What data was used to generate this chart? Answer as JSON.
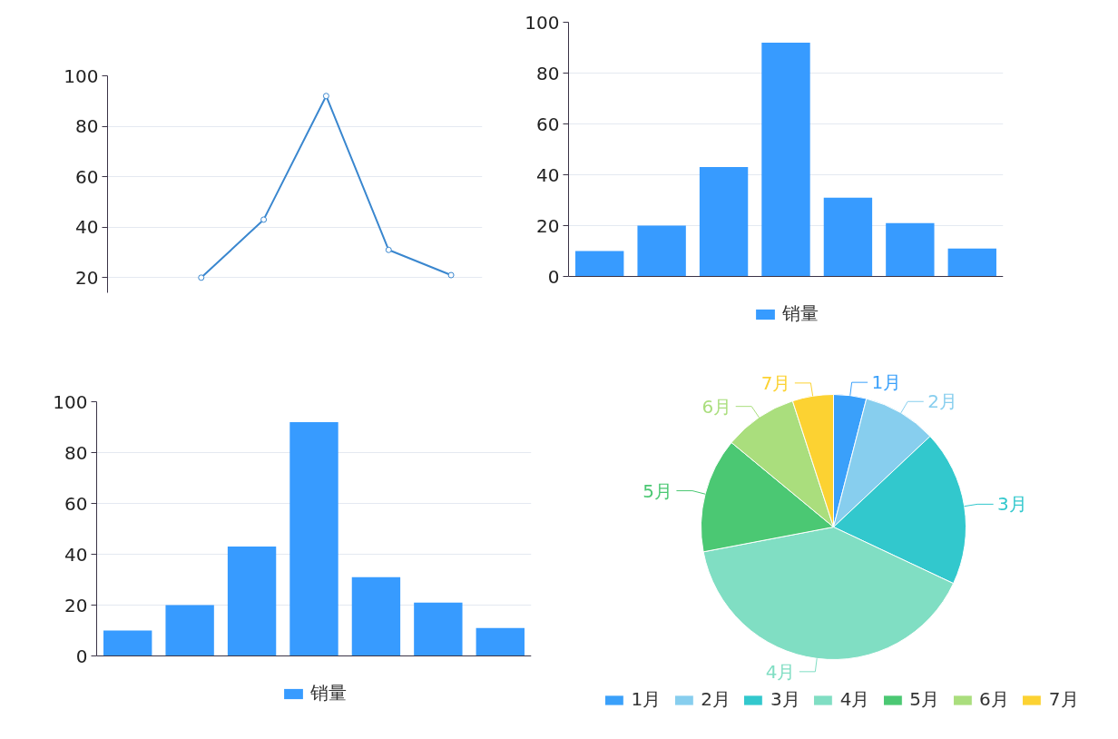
{
  "chart_data": [
    {
      "type": "line",
      "categories": [
        null,
        null,
        null,
        null,
        null,
        null
      ],
      "values": [
        null,
        20,
        43,
        92,
        31,
        21
      ],
      "color": "#3a87cf",
      "marker": "circle",
      "ylim": [
        14,
        100
      ],
      "yticks": [
        20,
        40,
        60,
        80,
        100
      ],
      "grid": "y",
      "tick_labels": "y"
    },
    {
      "type": "bar",
      "categories": [
        null,
        null,
        null,
        null,
        null,
        null,
        null
      ],
      "series": [
        {
          "name": "销量",
          "color": "#379bff",
          "values": [
            10,
            20,
            43,
            92,
            31,
            21,
            11
          ]
        }
      ],
      "ylim": [
        0,
        100
      ],
      "yticks": [
        0,
        20,
        40,
        60,
        80,
        100
      ],
      "grid": "y",
      "legend": "bottom",
      "tick_labels": "y"
    },
    {
      "type": "bar",
      "categories": [
        null,
        null,
        null,
        null,
        null,
        null,
        null
      ],
      "series": [
        {
          "name": "销量",
          "color": "#379bff",
          "values": [
            10,
            20,
            43,
            92,
            31,
            21,
            11
          ]
        }
      ],
      "ylim": [
        0,
        100
      ],
      "yticks": [
        0,
        20,
        40,
        60,
        80,
        100
      ],
      "grid": "y",
      "legend": "bottom",
      "tick_labels": "y"
    },
    {
      "type": "pie",
      "categories": [
        "1月",
        "2月",
        "3月",
        "4月",
        "5月",
        "6月",
        "7月"
      ],
      "values": [
        4,
        9,
        19,
        40,
        14,
        9,
        5
      ],
      "colors": [
        "#3aa0fa",
        "#87ceee",
        "#32c8cd",
        "#80dec3",
        "#4bc873",
        "#aade7d",
        "#fcd232"
      ],
      "legend": "bottom"
    }
  ]
}
